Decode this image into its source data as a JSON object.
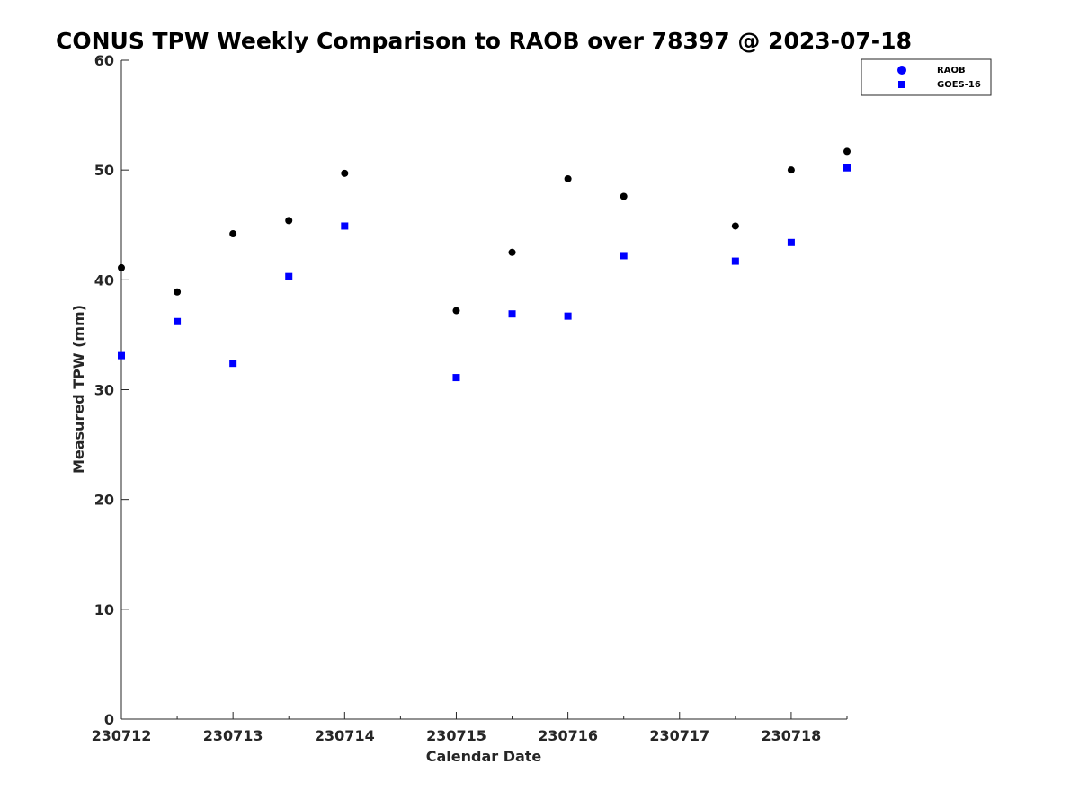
{
  "chart_data": {
    "type": "scatter",
    "title": "CONUS TPW Weekly Comparison to RAOB over 78397 @ 2023-07-18",
    "xlabel": "Calendar Date",
    "ylabel": "Measured TPW (mm)",
    "x_ticks": [
      "230712",
      "230713",
      "230714",
      "230715",
      "230716",
      "230717",
      "230718"
    ],
    "xlim": [
      0,
      6.5
    ],
    "ylim": [
      0,
      60
    ],
    "y_ticks": [
      "0",
      "10",
      "20",
      "30",
      "40",
      "50",
      "60"
    ],
    "grid": false,
    "legend_position": "top-right",
    "series": [
      {
        "name": "RAOB",
        "marker": "circle",
        "color": "#000000",
        "legend_color": "#0000ff",
        "x": [
          0,
          0.5,
          1,
          1.5,
          2,
          3,
          3.5,
          4,
          4.5,
          5.5,
          6,
          6.5
        ],
        "values": [
          41.1,
          38.9,
          44.2,
          45.4,
          49.7,
          37.2,
          42.5,
          49.2,
          47.6,
          44.9,
          50.0,
          51.7
        ]
      },
      {
        "name": "GOES-16",
        "marker": "square",
        "color": "#0000ff",
        "legend_color": "#0000ff",
        "x": [
          0,
          0.5,
          1,
          1.5,
          2,
          3,
          3.5,
          4,
          4.5,
          5.5,
          6,
          6.5
        ],
        "values": [
          33.1,
          36.2,
          32.4,
          40.3,
          44.9,
          31.1,
          36.9,
          36.7,
          42.2,
          41.7,
          43.4,
          50.2
        ]
      }
    ]
  }
}
